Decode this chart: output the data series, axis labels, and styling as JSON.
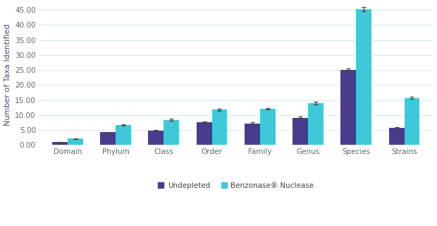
{
  "categories": [
    "Domain",
    "Phylum",
    "Class",
    "Order",
    "Family",
    "Genus",
    "Species",
    "Strains"
  ],
  "undepleted_values": [
    1.0,
    4.2,
    4.8,
    7.5,
    7.2,
    9.1,
    25.0,
    5.7
  ],
  "benzonase_values": [
    2.1,
    6.6,
    8.4,
    11.8,
    12.1,
    14.0,
    45.3,
    15.7
  ],
  "undepleted_errors": [
    0.1,
    0.2,
    0.2,
    0.3,
    0.3,
    0.4,
    0.6,
    0.3
  ],
  "benzonase_errors": [
    0.15,
    0.25,
    0.3,
    0.35,
    0.3,
    0.4,
    0.7,
    0.4
  ],
  "undepleted_color": "#4B3B8C",
  "benzonase_color": "#40C8D8",
  "ylabel": "Number of Taxa Identified",
  "ylim": [
    0,
    47
  ],
  "yticks": [
    0.0,
    5.0,
    10.0,
    15.0,
    20.0,
    25.0,
    30.0,
    35.0,
    40.0,
    45.0
  ],
  "legend_undepleted": "Undepleted",
  "legend_benzonase": "Benzonase® Nuclease",
  "bar_width": 0.32,
  "figure_bg": "#ffffff",
  "plot_bg": "#ffffff",
  "grid_color": "#d8e8f0",
  "error_color": "#444444",
  "tick_label_color": "#666666",
  "ylabel_color": "#4a4a6a",
  "ylabel_fontsize": 8.0,
  "tick_fontsize": 7.5
}
